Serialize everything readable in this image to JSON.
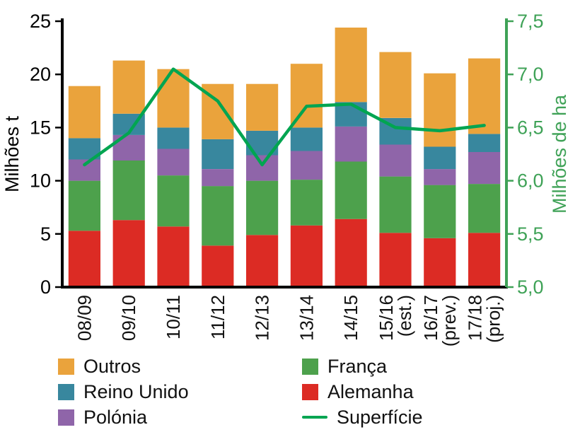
{
  "chart_data": {
    "type": "bar",
    "subtype": "stacked-bar-with-line",
    "title": "",
    "categories": [
      [
        "08/09"
      ],
      [
        "09/10"
      ],
      [
        "10/11"
      ],
      [
        "11/12"
      ],
      [
        "12/13"
      ],
      [
        "13/14"
      ],
      [
        "14/15"
      ],
      [
        "15/16",
        "(est.)"
      ],
      [
        "16/17",
        "(prev.)"
      ],
      [
        "17/18",
        "(proj.)"
      ]
    ],
    "bar_series": [
      {
        "name": "Alemanha",
        "color": "#dc2b24",
        "values": [
          5.3,
          6.3,
          5.7,
          3.9,
          4.9,
          5.8,
          6.4,
          5.1,
          4.6,
          5.1
        ]
      },
      {
        "name": "França",
        "color": "#4da14c",
        "values": [
          4.7,
          5.6,
          4.8,
          5.6,
          5.1,
          4.3,
          5.4,
          5.3,
          5.0,
          4.6
        ]
      },
      {
        "name": "Polónia",
        "color": "#8f65a9",
        "values": [
          2.0,
          2.4,
          2.5,
          1.6,
          2.4,
          2.7,
          3.3,
          3.0,
          1.5,
          3.0
        ]
      },
      {
        "name": "Reino Unido",
        "color": "#38879e",
        "values": [
          2.0,
          2.0,
          2.0,
          2.8,
          2.3,
          2.2,
          2.3,
          2.5,
          2.1,
          1.7
        ]
      },
      {
        "name": "Outros",
        "color": "#eaa33c",
        "values": [
          4.9,
          5.0,
          5.5,
          5.2,
          4.4,
          6.0,
          7.0,
          6.2,
          6.9,
          7.1
        ]
      }
    ],
    "line_series": {
      "name": "Superfície",
      "color": "#00a551",
      "values": [
        6.15,
        6.45,
        7.05,
        6.75,
        6.15,
        6.7,
        6.72,
        6.5,
        6.47,
        6.52
      ]
    },
    "left_axis": {
      "label": "Milhões t",
      "min": 0,
      "max": 25,
      "color": "#000000",
      "tick_values": [
        0,
        5,
        10,
        15,
        20,
        25
      ],
      "tick_labels": [
        "0",
        "5",
        "10",
        "15",
        "20",
        "25"
      ]
    },
    "right_axis": {
      "label": "Milhões de ha",
      "min": 5.0,
      "max": 7.5,
      "color": "#3fa257",
      "tick_values": [
        5.0,
        5.5,
        6.0,
        6.5,
        7.0,
        7.5
      ],
      "tick_labels": [
        "5,0",
        "5,5",
        "6,0",
        "6,5",
        "7,0",
        "7,5"
      ]
    },
    "legend": {
      "columns": [
        [
          {
            "label": "Outros",
            "swatch": "box",
            "color": "#eaa33c"
          },
          {
            "label": "Reino Unido",
            "swatch": "box",
            "color": "#38879e"
          },
          {
            "label": "Polónia",
            "swatch": "box",
            "color": "#8f65a9"
          }
        ],
        [
          {
            "label": "França",
            "swatch": "box",
            "color": "#4da14c"
          },
          {
            "label": "Alemanha",
            "swatch": "box",
            "color": "#dc2b24"
          },
          {
            "label": "Superfície",
            "swatch": "line",
            "color": "#00a551"
          }
        ]
      ]
    },
    "layout": {
      "grid": false,
      "legend_position": "bottom"
    }
  }
}
